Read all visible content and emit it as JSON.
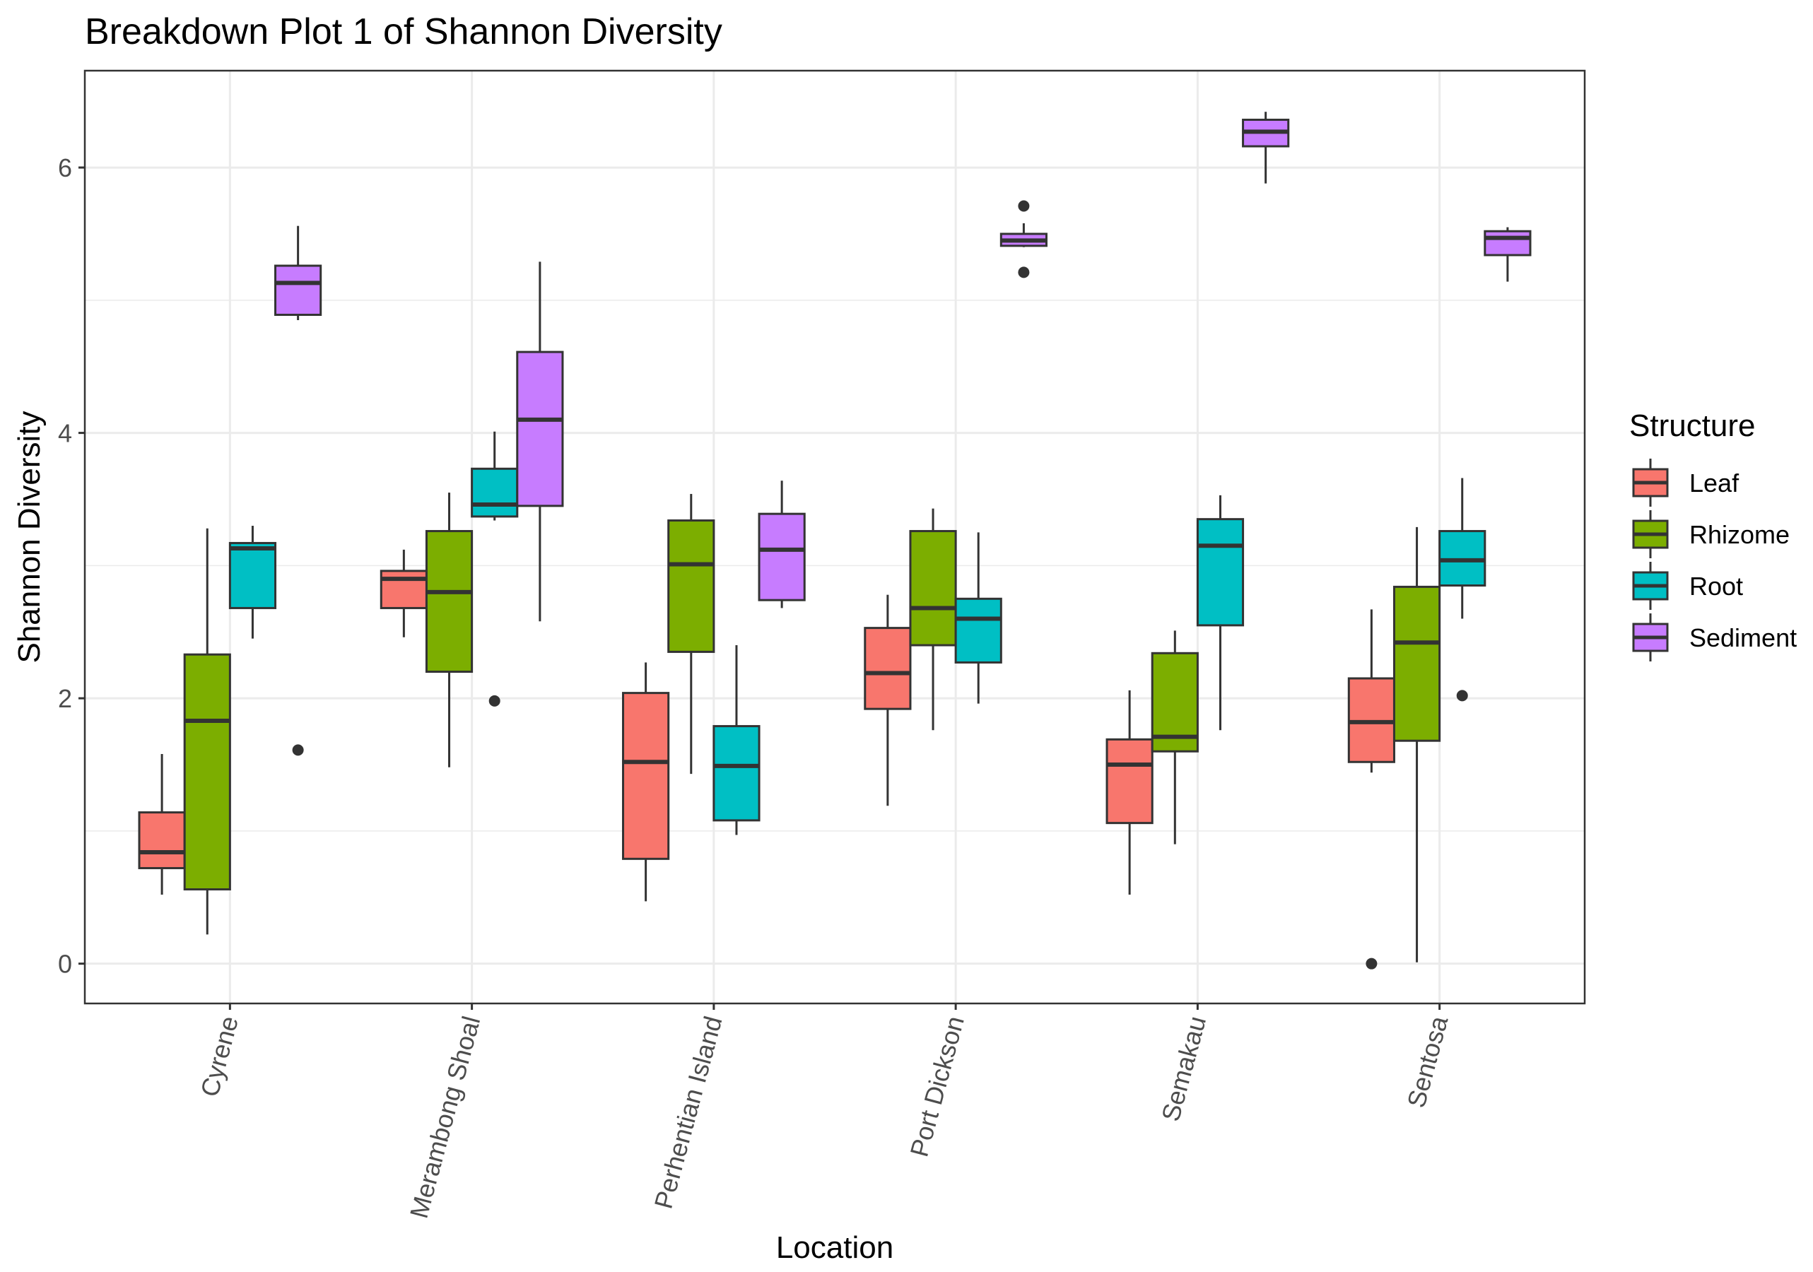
{
  "chart_data": {
    "type": "boxplot",
    "title": "Breakdown Plot 1 of Shannon Diversity",
    "xlabel": "Location",
    "ylabel": "Shannon Diversity",
    "ylim": [
      -0.3,
      6.73
    ],
    "yticks": [
      0,
      2,
      4,
      6
    ],
    "grid": true,
    "legend_position": "right",
    "legend_title": "Structure",
    "categories": [
      "Cyrene",
      "Merambong Shoal",
      "Perhentian Island",
      "Port Dickson",
      "Semakau",
      "Sentosa"
    ],
    "series": [
      {
        "name": "Leaf",
        "color": "#F8766D",
        "boxes": [
          {
            "location": "Cyrene",
            "min": 0.52,
            "q1": 0.72,
            "median": 0.84,
            "q3": 1.14,
            "max": 1.58,
            "outliers": []
          },
          {
            "location": "Merambong Shoal",
            "min": 2.46,
            "q1": 2.68,
            "median": 2.9,
            "q3": 2.96,
            "max": 3.12,
            "outliers": []
          },
          {
            "location": "Perhentian Island",
            "min": 0.47,
            "q1": 0.79,
            "median": 1.52,
            "q3": 2.04,
            "max": 2.27,
            "outliers": []
          },
          {
            "location": "Port Dickson",
            "min": 1.19,
            "q1": 1.92,
            "median": 2.19,
            "q3": 2.53,
            "max": 2.78,
            "outliers": []
          },
          {
            "location": "Semakau",
            "min": 0.52,
            "q1": 1.06,
            "median": 1.5,
            "q3": 1.69,
            "max": 2.06,
            "outliers": []
          },
          {
            "location": "Sentosa",
            "min": 1.44,
            "q1": 1.52,
            "median": 1.82,
            "q3": 2.15,
            "max": 2.67,
            "outliers": [
              0.0
            ]
          }
        ]
      },
      {
        "name": "Rhizome",
        "color": "#7CAE00",
        "boxes": [
          {
            "location": "Cyrene",
            "min": 0.22,
            "q1": 0.56,
            "median": 1.83,
            "q3": 2.33,
            "max": 3.28,
            "outliers": []
          },
          {
            "location": "Merambong Shoal",
            "min": 1.48,
            "q1": 2.2,
            "median": 2.8,
            "q3": 3.26,
            "max": 3.55,
            "outliers": []
          },
          {
            "location": "Perhentian Island",
            "min": 1.43,
            "q1": 2.35,
            "median": 3.01,
            "q3": 3.34,
            "max": 3.54,
            "outliers": []
          },
          {
            "location": "Port Dickson",
            "min": 1.76,
            "q1": 2.4,
            "median": 2.68,
            "q3": 3.26,
            "max": 3.43,
            "outliers": []
          },
          {
            "location": "Semakau",
            "min": 0.9,
            "q1": 1.6,
            "median": 1.71,
            "q3": 2.34,
            "max": 2.51,
            "outliers": []
          },
          {
            "location": "Sentosa",
            "min": 0.01,
            "q1": 1.68,
            "median": 2.42,
            "q3": 2.84,
            "max": 3.29,
            "outliers": []
          }
        ]
      },
      {
        "name": "Root",
        "color": "#00BFC4",
        "boxes": [
          {
            "location": "Cyrene",
            "min": 2.45,
            "q1": 2.68,
            "median": 3.13,
            "q3": 3.17,
            "max": 3.3,
            "outliers": []
          },
          {
            "location": "Merambong Shoal",
            "min": 3.34,
            "q1": 3.37,
            "median": 3.46,
            "q3": 3.73,
            "max": 4.01,
            "outliers": [
              1.98
            ]
          },
          {
            "location": "Perhentian Island",
            "min": 0.97,
            "q1": 1.08,
            "median": 1.49,
            "q3": 1.79,
            "max": 2.4,
            "outliers": []
          },
          {
            "location": "Port Dickson",
            "min": 1.96,
            "q1": 2.27,
            "median": 2.6,
            "q3": 2.75,
            "max": 3.25,
            "outliers": []
          },
          {
            "location": "Semakau",
            "min": 1.76,
            "q1": 2.55,
            "median": 3.15,
            "q3": 3.35,
            "max": 3.53,
            "outliers": []
          },
          {
            "location": "Sentosa",
            "min": 2.6,
            "q1": 2.85,
            "median": 3.04,
            "q3": 3.26,
            "max": 3.66,
            "outliers": [
              2.02
            ]
          }
        ]
      },
      {
        "name": "Sediment",
        "color": "#C77CFF",
        "boxes": [
          {
            "location": "Cyrene",
            "min": 4.85,
            "q1": 4.89,
            "median": 5.13,
            "q3": 5.26,
            "max": 5.56,
            "outliers": [
              1.61
            ]
          },
          {
            "location": "Merambong Shoal",
            "min": 2.58,
            "q1": 3.45,
            "median": 4.1,
            "q3": 4.61,
            "max": 5.29,
            "outliers": []
          },
          {
            "location": "Perhentian Island",
            "min": 2.68,
            "q1": 2.74,
            "median": 3.12,
            "q3": 3.39,
            "max": 3.64,
            "outliers": []
          },
          {
            "location": "Port Dickson",
            "min": 5.4,
            "q1": 5.41,
            "median": 5.45,
            "q3": 5.5,
            "max": 5.58,
            "outliers": [
              5.71,
              5.21
            ]
          },
          {
            "location": "Semakau",
            "min": 5.88,
            "q1": 6.16,
            "median": 6.27,
            "q3": 6.36,
            "max": 6.42,
            "outliers": []
          },
          {
            "location": "Sentosa",
            "min": 5.14,
            "q1": 5.34,
            "median": 5.47,
            "q3": 5.52,
            "max": 5.55,
            "outliers": []
          }
        ]
      }
    ]
  }
}
